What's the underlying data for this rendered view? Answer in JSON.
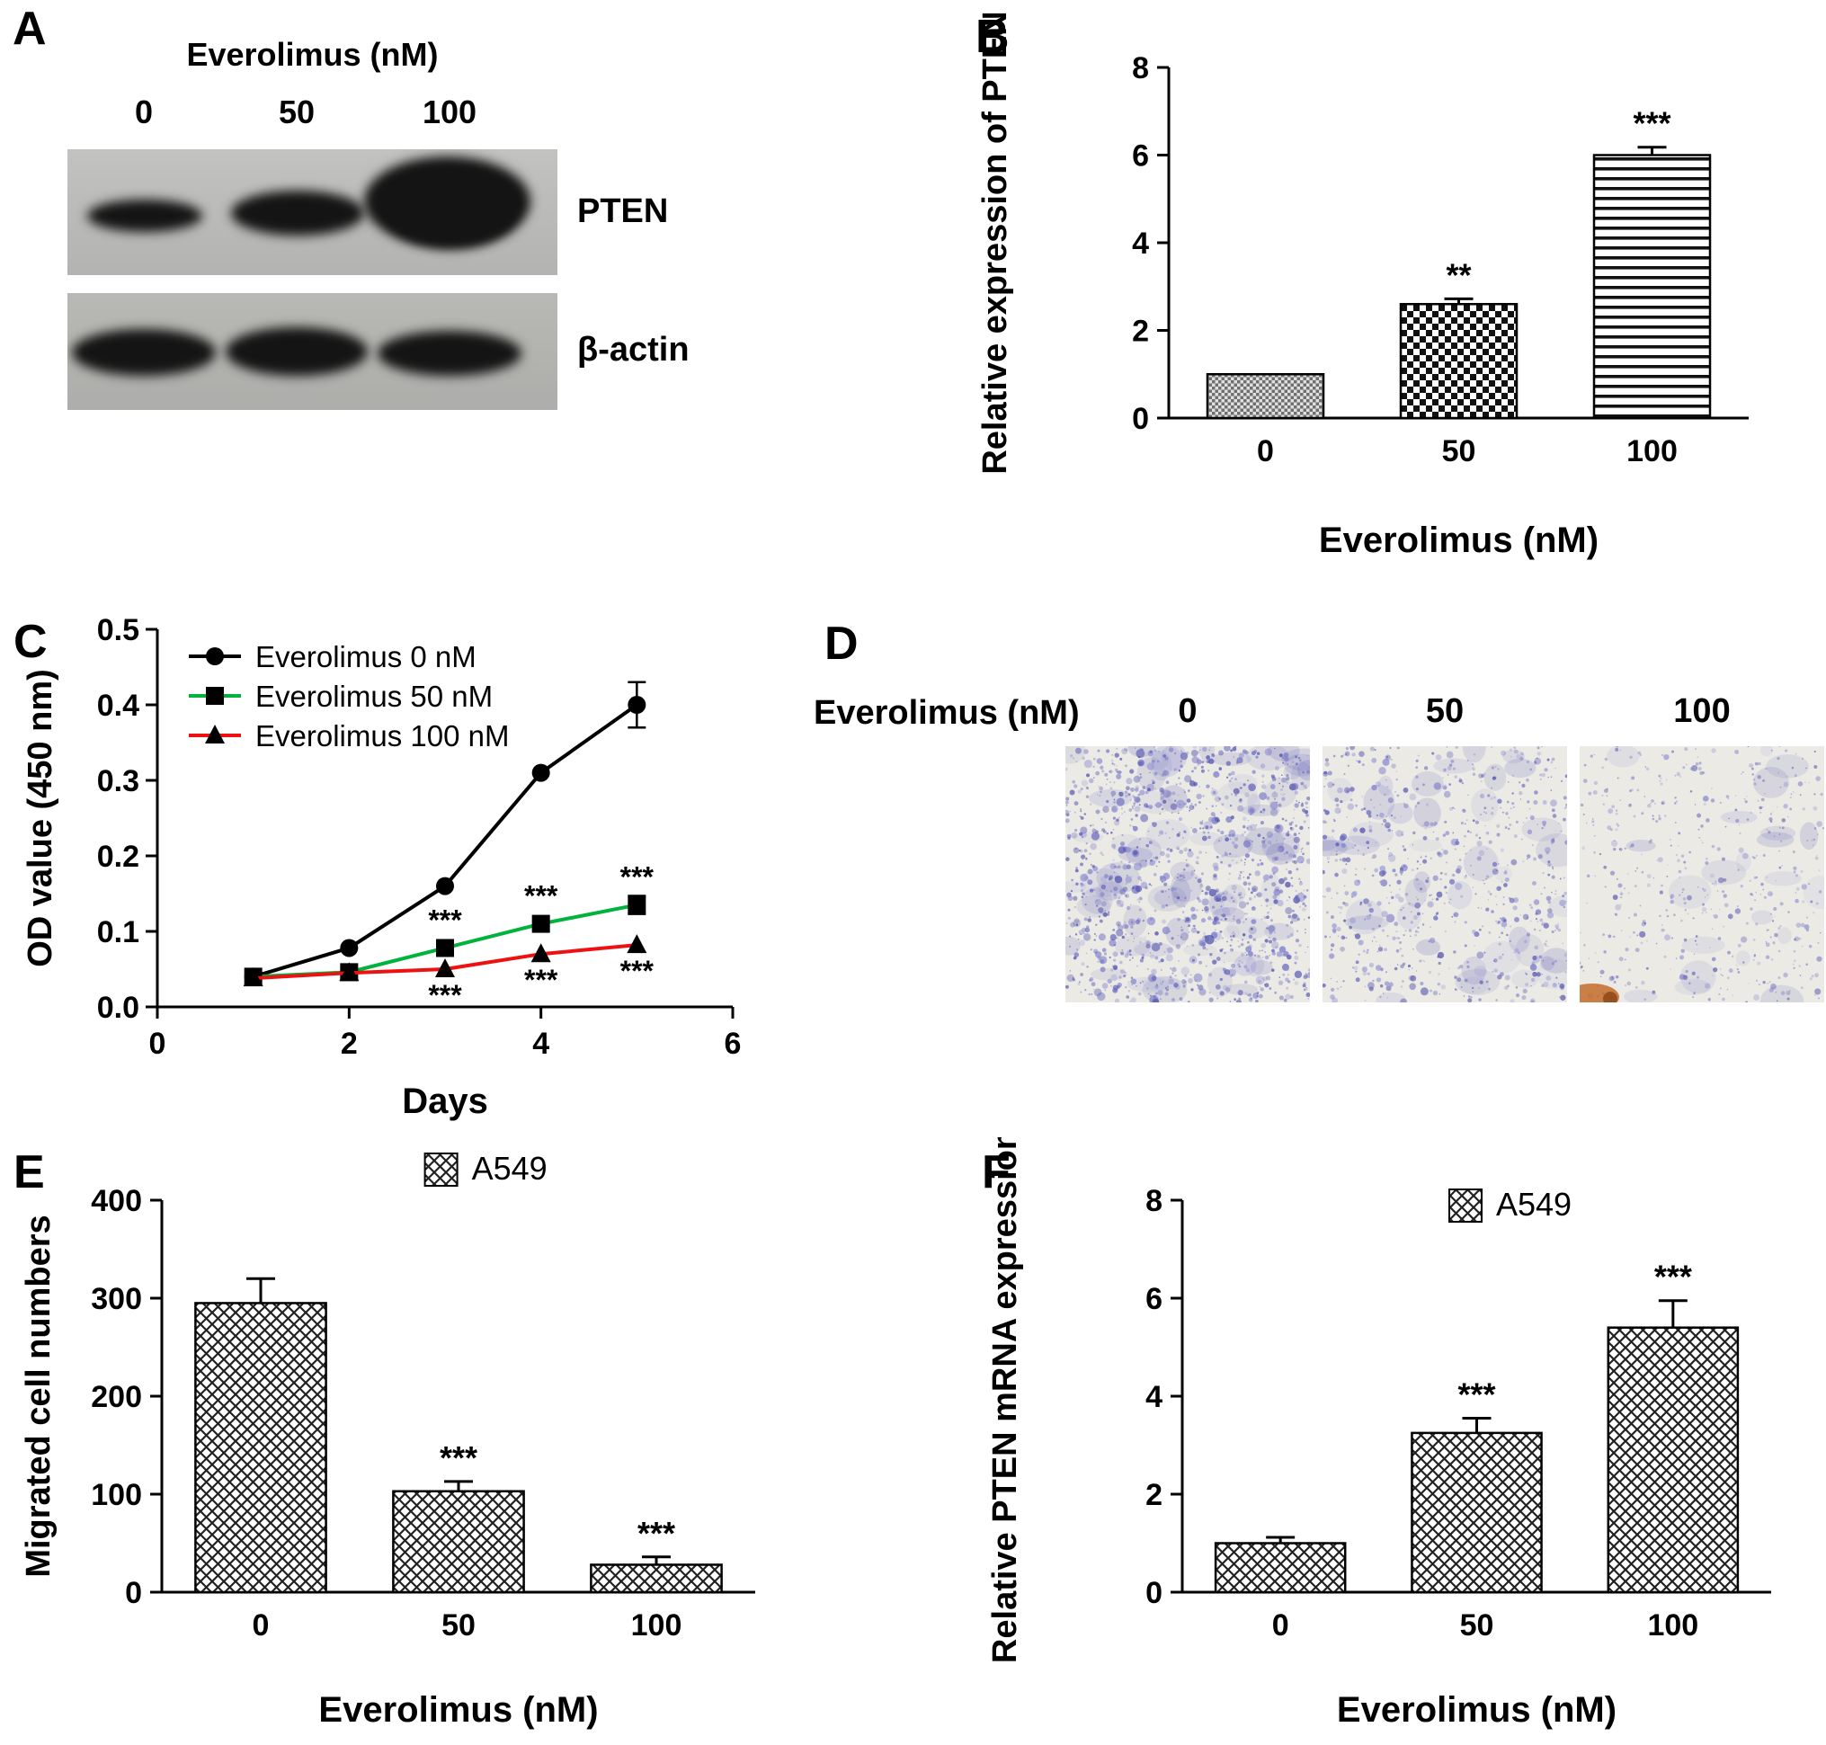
{
  "panels": {
    "a": {
      "letter": "A",
      "header": "Everolimus (nM)",
      "lanes": [
        "0",
        "50",
        "100"
      ],
      "rows": [
        {
          "label": "PTEN"
        },
        {
          "label": "β-actin"
        }
      ]
    },
    "b": {
      "letter": "B"
    },
    "c": {
      "letter": "C"
    },
    "d": {
      "letter": "D",
      "header": "Everolimus (nM)",
      "images": [
        {
          "label": "0",
          "density": "high"
        },
        {
          "label": "50",
          "density": "medium"
        },
        {
          "label": "100",
          "density": "low",
          "smudge": true
        }
      ]
    },
    "e": {
      "letter": "E"
    },
    "f": {
      "letter": "F"
    }
  },
  "colors": {
    "series_0nM": "#000000",
    "series_50nM": "#00b33c",
    "series_100nM": "#ee1111",
    "stain": "#6b6bc0"
  },
  "chart_data": [
    {
      "id": "B",
      "type": "bar",
      "title": "",
      "ylabel": "Relative expression of PTEN",
      "xlabel": "Everolimus (nM)",
      "categories": [
        "0",
        "50",
        "100"
      ],
      "values": [
        1.0,
        2.6,
        6.0
      ],
      "errors": [
        0,
        0.12,
        0.18
      ],
      "annotations": [
        "",
        "**",
        "***"
      ],
      "ylim": [
        0,
        8
      ],
      "yticks": [
        0,
        2,
        4,
        6,
        8
      ],
      "patterns": [
        "graycheck",
        "checker",
        "hlines"
      ],
      "grid": false,
      "legend": null
    },
    {
      "id": "C",
      "type": "line",
      "title": "",
      "ylabel": "OD value (450 nm)",
      "xlabel": "Days",
      "xlim": [
        0,
        6
      ],
      "ylim": [
        0,
        0.5
      ],
      "xticks": [
        0,
        2,
        4,
        6
      ],
      "yticks": [
        0,
        0.1,
        0.2,
        0.3,
        0.4,
        0.5
      ],
      "ytick_labels": [
        "0.0",
        "0.1",
        "0.2",
        "0.3",
        "0.4",
        "0.5"
      ],
      "x": [
        1,
        2,
        3,
        4,
        5
      ],
      "legend_position": "top-left",
      "grid": false,
      "series": [
        {
          "name": "Everolimus 0 nM",
          "color": "#000000",
          "marker": "circle",
          "values": [
            0.04,
            0.078,
            0.16,
            0.31,
            0.4
          ],
          "errors": [
            0,
            0,
            0,
            0,
            0.03
          ]
        },
        {
          "name": "Everolimus 50 nM",
          "color": "#00b33c",
          "marker": "square",
          "values": [
            0.04,
            0.046,
            0.078,
            0.11,
            0.135
          ],
          "errors": [
            0,
            0,
            0,
            0,
            0.012
          ],
          "annotations": [
            "",
            "",
            "***",
            "***",
            "***"
          ],
          "annotation_side": "above"
        },
        {
          "name": "Everolimus 100 nM",
          "color": "#ee1111",
          "marker": "triangle",
          "values": [
            0.038,
            0.045,
            0.05,
            0.07,
            0.082
          ],
          "errors": [
            0,
            0,
            0,
            0,
            0
          ],
          "annotations": [
            "",
            "",
            "***",
            "***",
            "***"
          ],
          "annotation_side": "below"
        }
      ]
    },
    {
      "id": "E",
      "type": "bar",
      "title": "",
      "ylabel": "Migrated cell numbers",
      "xlabel": "Everolimus (nM)",
      "categories": [
        "0",
        "50",
        "100"
      ],
      "values": [
        295,
        103,
        28
      ],
      "errors": [
        25,
        10,
        8
      ],
      "annotations": [
        "",
        "***",
        "***"
      ],
      "ylim": [
        0,
        400
      ],
      "yticks": [
        0,
        100,
        200,
        300,
        400
      ],
      "patterns": [
        "cross",
        "cross",
        "cross"
      ],
      "grid": false,
      "legend": {
        "label": "A549",
        "pattern": "cross"
      }
    },
    {
      "id": "F",
      "type": "bar",
      "title": "",
      "ylabel": "Relative PTEN mRNA expression",
      "xlabel": "Everolimus (nM)",
      "categories": [
        "0",
        "50",
        "100"
      ],
      "values": [
        1.0,
        3.25,
        5.4
      ],
      "errors": [
        0.12,
        0.3,
        0.55
      ],
      "annotations": [
        "",
        "***",
        "***"
      ],
      "ylim": [
        0,
        8
      ],
      "yticks": [
        0,
        2,
        4,
        6,
        8
      ],
      "patterns": [
        "cross",
        "cross",
        "cross"
      ],
      "grid": false,
      "legend": {
        "label": "A549",
        "pattern": "cross"
      }
    }
  ]
}
